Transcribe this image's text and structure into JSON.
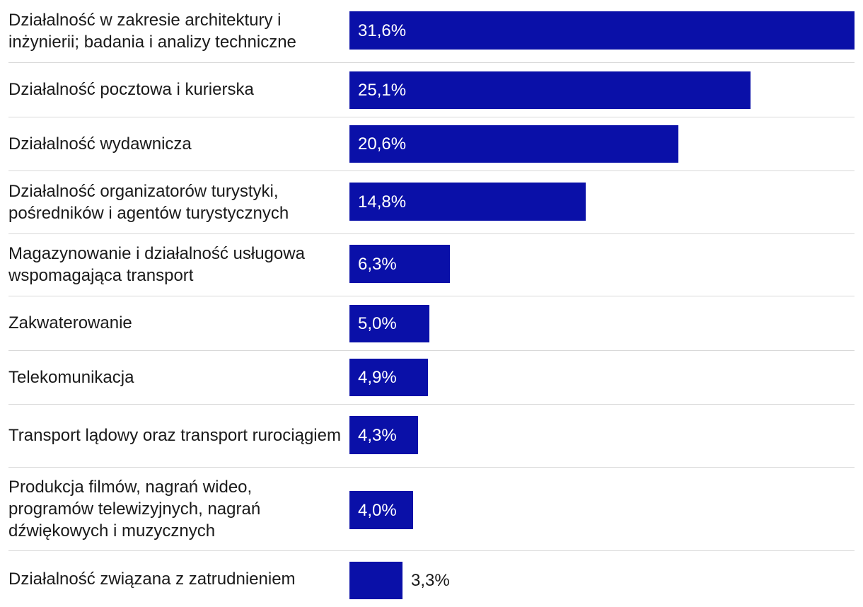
{
  "chart_data": {
    "type": "bar",
    "orientation": "horizontal",
    "title": "",
    "xlabel": "",
    "ylabel": "",
    "xlim": [
      0,
      31.6
    ],
    "grid": false,
    "legend": "none",
    "bar_color": "#0a10a8",
    "categories": [
      "Działalność w zakresie architektury i inżynierii; badania i analizy techniczne",
      "Działalność pocztowa i kurierska",
      "Działalność wydawnicza",
      "Działalność organizatorów turystyki, pośredników i agentów turystycznych",
      "Magazynowanie i działalność usługowa wspomagająca transport",
      "Zakwaterowanie",
      "Telekomunikacja",
      "Transport lądowy oraz transport rurociągiem",
      "Produkcja filmów, nagrań wideo, programów telewizyjnych, nagrań dźwiękowych i muzycznych",
      "Działalność związana z zatrudnieniem"
    ],
    "values": [
      31.6,
      25.1,
      20.6,
      14.8,
      6.3,
      5.0,
      4.9,
      4.3,
      4.0,
      3.3
    ],
    "value_labels": [
      "31,6%",
      "25,1%",
      "20,6%",
      "14,8%",
      "6,3%",
      "5,0%",
      "4,9%",
      "4,3%",
      "4,0%",
      "3,3%"
    ]
  }
}
